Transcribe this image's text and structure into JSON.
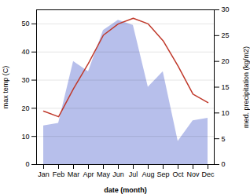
{
  "chart_data": {
    "type": "line",
    "categories": [
      "Jan",
      "Feb",
      "Mar",
      "Apr",
      "May",
      "Jun",
      "Jul",
      "Aug",
      "Sep",
      "Oct",
      "Nov",
      "Dec"
    ],
    "xlabel": "date (month)",
    "ylabel": "max temp (C)",
    "y2label": "med. precipitation (kg/m2)",
    "series": [
      {
        "type": "area",
        "axis": "y2",
        "color": "#aab4e8",
        "values": [
          7.5,
          8,
          20,
          18,
          26,
          28,
          27,
          15,
          18,
          4.5,
          8.5,
          9
        ]
      },
      {
        "type": "line",
        "color": "#c0392b",
        "values": [
          19,
          17,
          27,
          36,
          46,
          50,
          52,
          50,
          44,
          35,
          25,
          22
        ]
      }
    ],
    "ylim": [
      0,
      55
    ],
    "yticks": [
      0,
      10,
      20,
      30,
      40,
      50
    ],
    "y2lim": [
      0,
      30
    ],
    "y2ticks": [
      0,
      5,
      10,
      15,
      20,
      25,
      30
    ],
    "grid": true
  }
}
